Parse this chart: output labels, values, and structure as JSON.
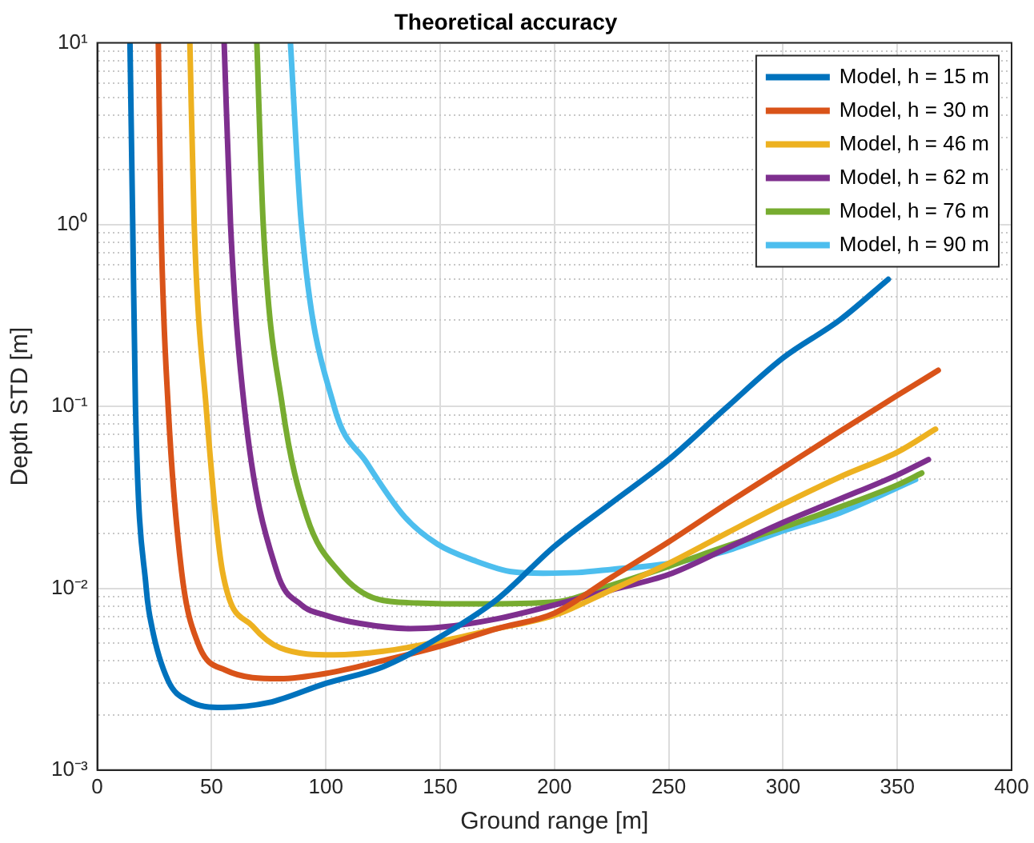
{
  "chart_data": {
    "type": "line",
    "title": "Theoretical accuracy",
    "xlabel": "Ground range [m]",
    "ylabel": "Depth STD [m]",
    "log": "y",
    "grid": true,
    "legend": "top right",
    "xlim": [
      0,
      400
    ],
    "xticks": [
      0,
      50,
      100,
      150,
      200,
      250,
      300,
      350,
      400
    ],
    "ylim": [
      0.001,
      10
    ],
    "yticks": [
      {
        "value": 0.001,
        "label": "10⁻³"
      },
      {
        "value": 0.002,
        "label": null
      },
      {
        "value": 0.003,
        "label": null
      },
      {
        "value": 0.004,
        "label": null
      },
      {
        "value": 0.005,
        "label": null
      },
      {
        "value": 0.006,
        "label": null
      },
      {
        "value": 0.007,
        "label": null
      },
      {
        "value": 0.008,
        "label": null
      },
      {
        "value": 0.009,
        "label": null
      },
      {
        "value": 0.01,
        "label": "10⁻²"
      },
      {
        "value": 0.02,
        "label": null
      },
      {
        "value": 0.03,
        "label": null
      },
      {
        "value": 0.04,
        "label": null
      },
      {
        "value": 0.05,
        "label": null
      },
      {
        "value": 0.06,
        "label": null
      },
      {
        "value": 0.07,
        "label": null
      },
      {
        "value": 0.08,
        "label": null
      },
      {
        "value": 0.09,
        "label": null
      },
      {
        "value": 0.1,
        "label": "10⁻¹"
      },
      {
        "value": 0.2,
        "label": null
      },
      {
        "value": 0.3,
        "label": null
      },
      {
        "value": 0.4,
        "label": null
      },
      {
        "value": 0.5,
        "label": null
      },
      {
        "value": 0.6,
        "label": null
      },
      {
        "value": 0.7,
        "label": null
      },
      {
        "value": 0.8,
        "label": null
      },
      {
        "value": 0.9,
        "label": null
      },
      {
        "value": 1,
        "label": "10⁰"
      },
      {
        "value": 2,
        "label": null
      },
      {
        "value": 3,
        "label": null
      },
      {
        "value": 4,
        "label": null
      },
      {
        "value": 5,
        "label": null
      },
      {
        "value": 6,
        "label": null
      },
      {
        "value": 7,
        "label": null
      },
      {
        "value": 8,
        "label": null
      },
      {
        "value": 9,
        "label": null
      },
      {
        "value": 10,
        "label": "10¹"
      }
    ],
    "series": [
      {
        "name": "Model, h = 15 m",
        "color": "#0072bd",
        "x": [
          14.3,
          15.5,
          16.7,
          21.4,
          23.8,
          31,
          40,
          54.8,
          75,
          100,
          125,
          150,
          175,
          200,
          225,
          250,
          275,
          300,
          325,
          346
        ],
        "values": [
          10,
          1,
          0.1,
          0.01,
          0.0062,
          0.0031,
          0.0024,
          0.00221,
          0.00235,
          0.003,
          0.0037,
          0.0054,
          0.0087,
          0.017,
          0.0295,
          0.051,
          0.098,
          0.185,
          0.3,
          0.5
        ]
      },
      {
        "name": "Model, h = 30 m",
        "color": "#d95319",
        "x": [
          26.7,
          27.9,
          31,
          36.9,
          44,
          56,
          79.8,
          100,
          125,
          150,
          175,
          200,
          225,
          250,
          275,
          300,
          325,
          350,
          367.9
        ],
        "values": [
          10,
          1,
          0.1,
          0.0123,
          0.005,
          0.00355,
          0.00318,
          0.0034,
          0.004,
          0.0048,
          0.006,
          0.0073,
          0.0115,
          0.018,
          0.029,
          0.046,
          0.073,
          0.115,
          0.158
        ]
      },
      {
        "name": "Model, h = 46 m",
        "color": "#edb120",
        "x": [
          40.5,
          42.4,
          47.6,
          54.8,
          67.9,
          80,
          103.6,
          125,
          150,
          175,
          200,
          225,
          250,
          275,
          300,
          325,
          350,
          366.7
        ],
        "values": [
          10,
          1,
          0.1,
          0.0123,
          0.0062,
          0.0047,
          0.0043,
          0.0045,
          0.0051,
          0.006,
          0.0071,
          0.0098,
          0.0137,
          0.02,
          0.029,
          0.041,
          0.056,
          0.075
        ]
      },
      {
        "name": "Model, h = 62 m",
        "color": "#7e2f8e",
        "x": [
          55.5,
          58.3,
          64.3,
          78.6,
          89.3,
          100,
          115,
          136.9,
          150,
          175,
          200,
          225,
          250,
          275,
          300,
          325,
          350,
          363.6
        ],
        "values": [
          10,
          1,
          0.1,
          0.0123,
          0.0081,
          0.0071,
          0.0064,
          0.006,
          0.0061,
          0.0068,
          0.0081,
          0.0098,
          0.0119,
          0.0165,
          0.023,
          0.031,
          0.042,
          0.051
        ]
      },
      {
        "name": "Model, h = 76 m",
        "color": "#77ac30",
        "x": [
          69.8,
          72.6,
          81,
          91.7,
          105.9,
          122.6,
          140,
          165,
          200,
          225,
          250,
          275,
          300,
          325,
          350,
          360.7
        ],
        "values": [
          10,
          1,
          0.1,
          0.0247,
          0.0123,
          0.0087,
          0.0083,
          0.0082,
          0.0084,
          0.0104,
          0.0132,
          0.017,
          0.0216,
          0.028,
          0.037,
          0.043
        ]
      },
      {
        "name": "Model, h = 90 m",
        "color": "#4dbeee",
        "x": [
          84.5,
          89.3,
          103.6,
          117.9,
          134.5,
          148.8,
          165,
          181.9,
          195,
          210,
          225,
          250,
          275,
          300,
          325,
          358
        ],
        "values": [
          10,
          1,
          0.1,
          0.049,
          0.0247,
          0.0175,
          0.0142,
          0.0123,
          0.0121,
          0.0122,
          0.0127,
          0.0137,
          0.016,
          0.0207,
          0.026,
          0.0396
        ]
      }
    ]
  }
}
